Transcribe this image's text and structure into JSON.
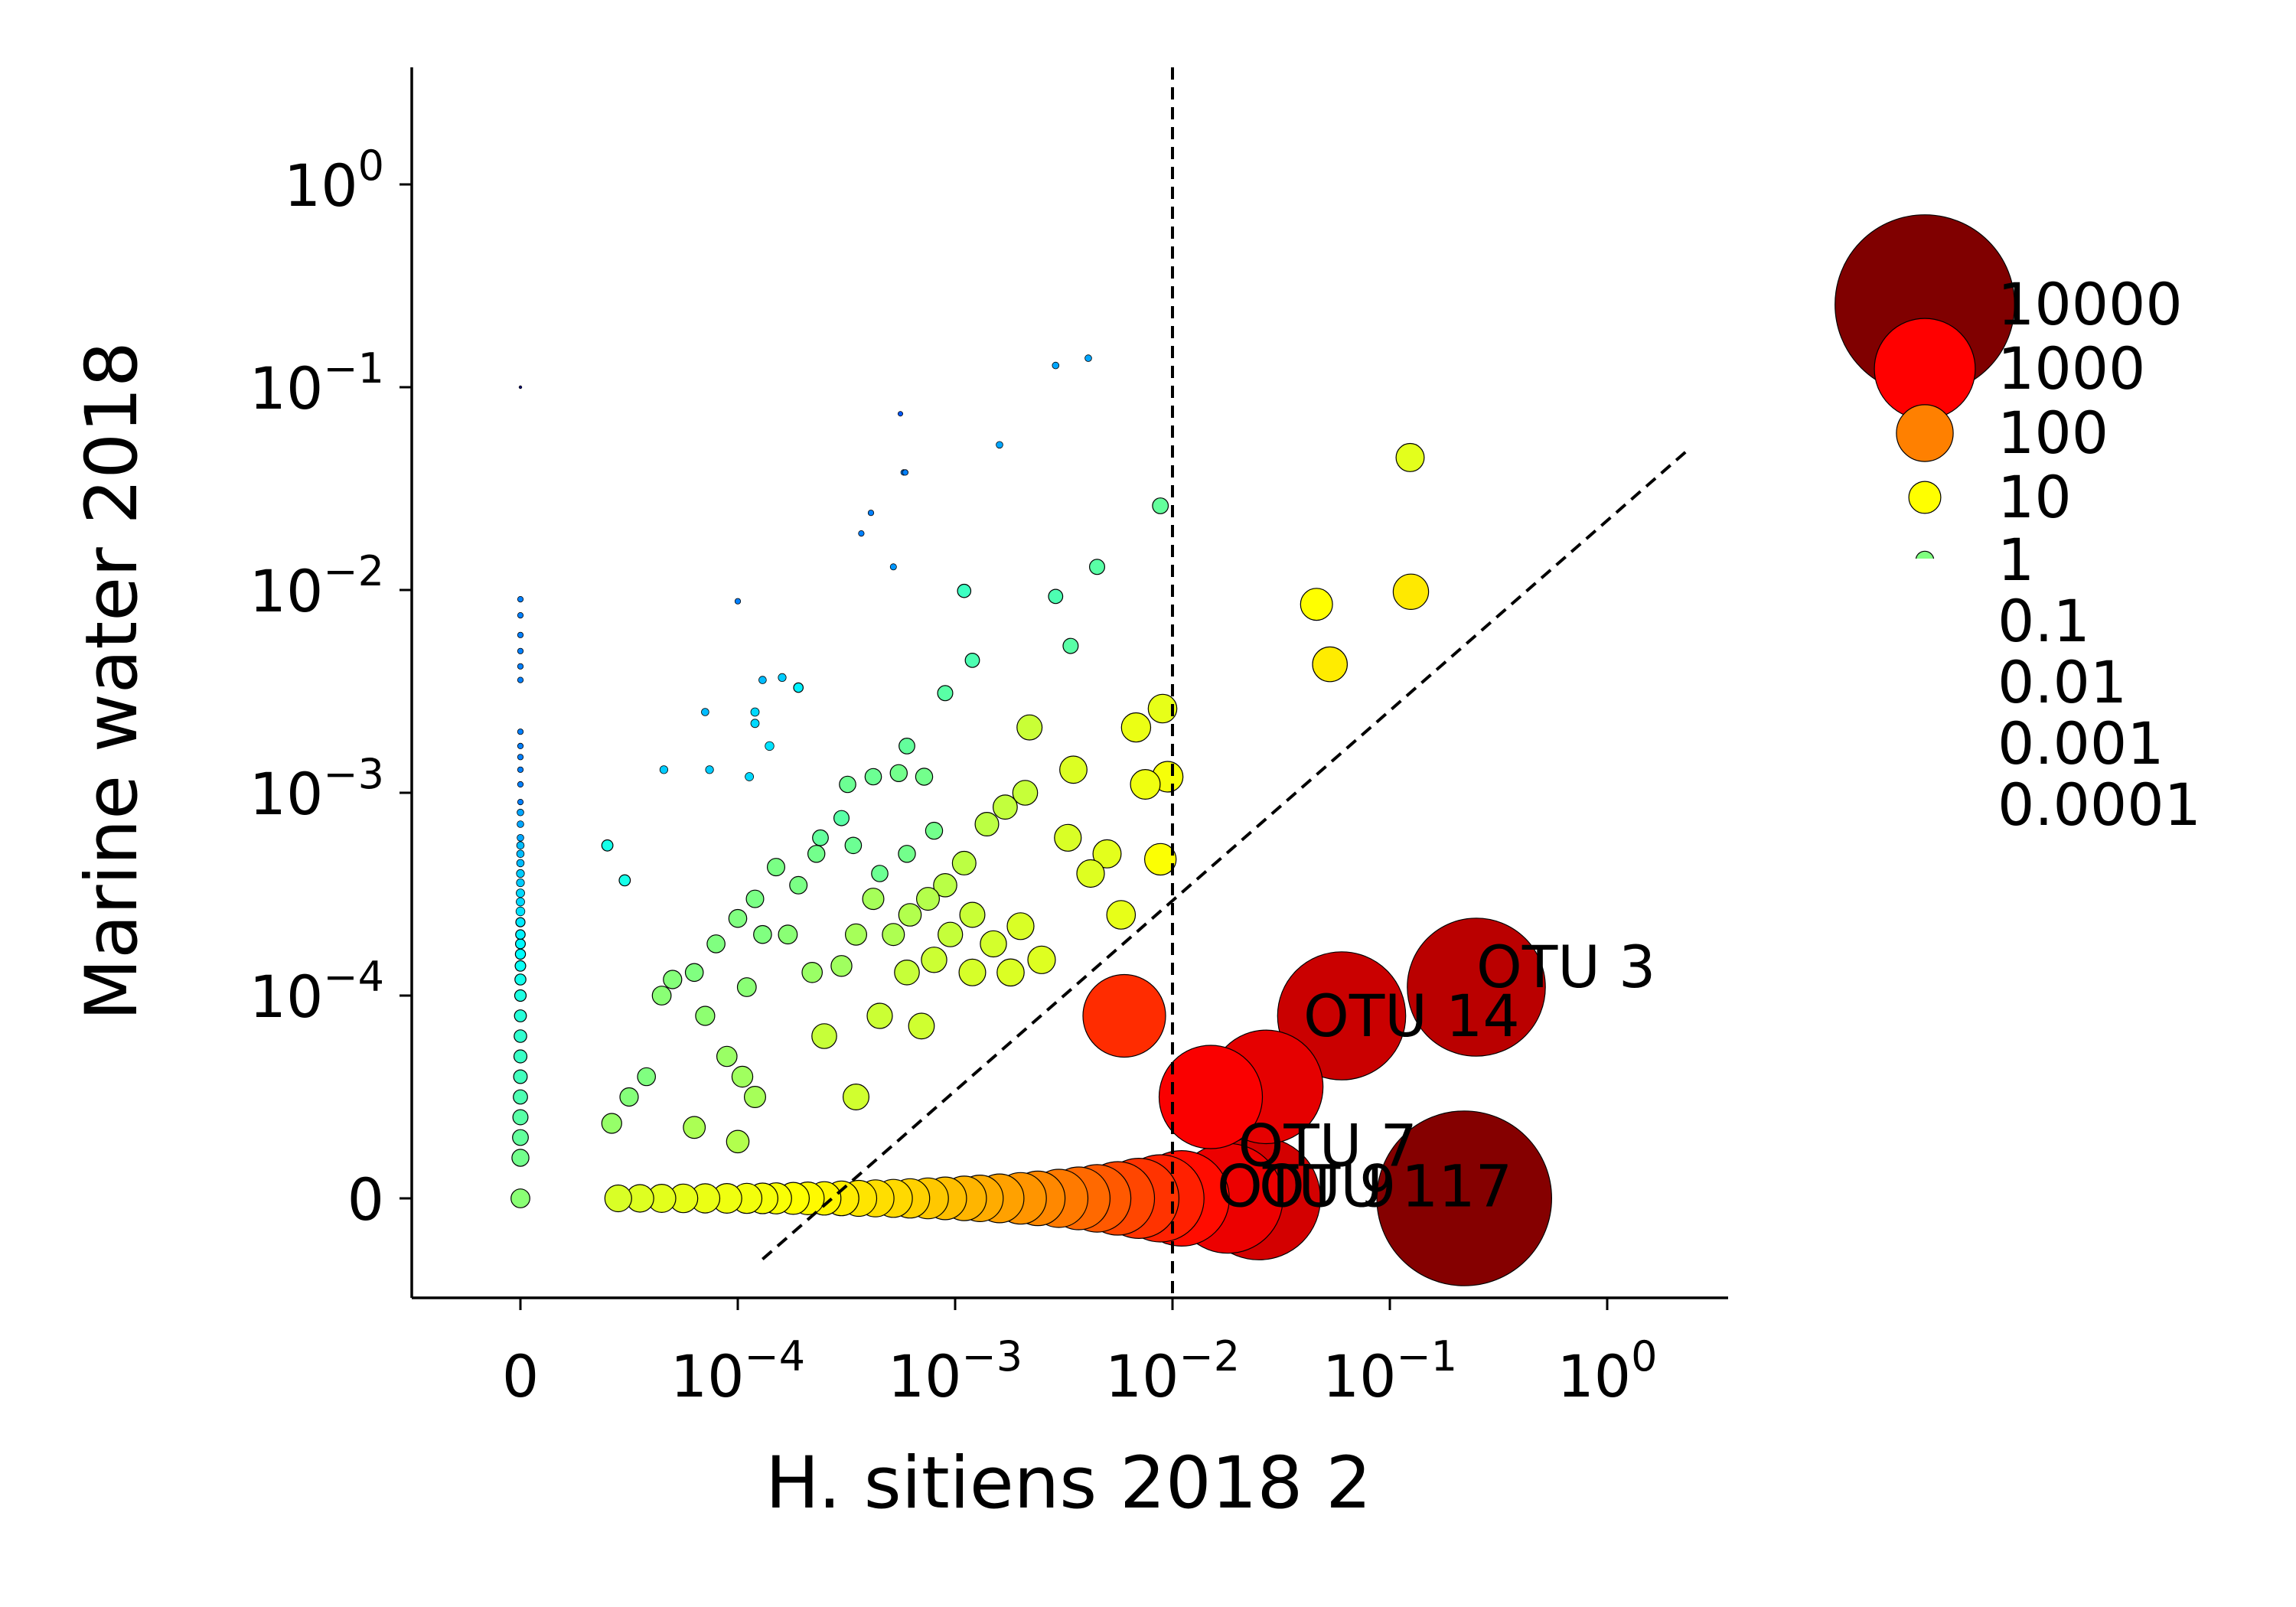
{
  "chart_data": {
    "type": "scatter",
    "title": "",
    "xlabel": "H. sitiens 2018 2",
    "ylabel": "Marine water 2018",
    "x_scale": "symlog",
    "y_scale": "symlog",
    "xlim": [
      -3e-05,
      2.5
    ],
    "ylim": [
      -3e-05,
      3.0
    ],
    "x_ticks": [
      {
        "value": 0,
        "base": "0",
        "exp": ""
      },
      {
        "value": 0.0001,
        "base": "10",
        "exp": "−4"
      },
      {
        "value": 0.001,
        "base": "10",
        "exp": "−3"
      },
      {
        "value": 0.01,
        "base": "10",
        "exp": "−2"
      },
      {
        "value": 0.1,
        "base": "10",
        "exp": "−1"
      },
      {
        "value": 1,
        "base": "10",
        "exp": "0"
      }
    ],
    "y_ticks": [
      {
        "value": 0,
        "base": "0",
        "exp": ""
      },
      {
        "value": 0.0001,
        "base": "10",
        "exp": "−4"
      },
      {
        "value": 0.001,
        "base": "10",
        "exp": "−3"
      },
      {
        "value": 0.01,
        "base": "10",
        "exp": "−2"
      },
      {
        "value": 0.1,
        "base": "10",
        "exp": "−1"
      },
      {
        "value": 1,
        "base": "10",
        "exp": "0"
      }
    ],
    "reference_lines": [
      {
        "kind": "vertical",
        "x": 0.01,
        "style": "dashed"
      },
      {
        "kind": "diagonal",
        "points": [
          [
            0.00013,
            -3e-05
          ],
          [
            2.4,
            0.05
          ]
        ],
        "style": "dashed"
      }
    ],
    "legend": {
      "placement": "right",
      "entries": [
        "10000",
        "1000",
        "100",
        "10",
        "1",
        "0.1",
        "0.01",
        "0.001",
        "0.0001"
      ]
    },
    "size_legend_values": [
      10000,
      1000,
      100,
      10,
      1,
      0.1,
      0.01,
      0.001,
      0.0001
    ],
    "color_map": "jet",
    "grid": false,
    "labels": [
      {
        "text": "OTU 3",
        "x": 0.25,
        "y": 0.00011
      },
      {
        "text": "OTU 14",
        "x": 0.04,
        "y": 8e-05
      },
      {
        "text": "OTU 7",
        "x": 0.02,
        "y": 1.6e-05
      },
      {
        "text": "OTU 9",
        "x": 0.016,
        "y": -4e-06
      },
      {
        "text": "OTU 117",
        "x": 0.025,
        "y": -4e-06
      }
    ],
    "points": [
      {
        "x": 0,
        "y": 0.1,
        "s": 0.0001
      },
      {
        "x": 0,
        "y": 0.009,
        "s": 0.01
      },
      {
        "x": 0,
        "y": 0.0075,
        "s": 0.01
      },
      {
        "x": 0,
        "y": 0.006,
        "s": 0.01
      },
      {
        "x": 0,
        "y": 0.005,
        "s": 0.01
      },
      {
        "x": 0,
        "y": 0.0042,
        "s": 0.01
      },
      {
        "x": 0,
        "y": 0.0036,
        "s": 0.01
      },
      {
        "x": 0,
        "y": 0.002,
        "s": 0.01
      },
      {
        "x": 0,
        "y": 0.0017,
        "s": 0.01
      },
      {
        "x": 0,
        "y": 0.0015,
        "s": 0.01
      },
      {
        "x": 0,
        "y": 0.0013,
        "s": 0.01
      },
      {
        "x": 0,
        "y": 0.0011,
        "s": 0.01
      },
      {
        "x": 0,
        "y": 0.0009,
        "s": 0.01
      },
      {
        "x": 0,
        "y": 0.0008,
        "s": 0.02
      },
      {
        "x": 0,
        "y": 0.0007,
        "s": 0.02
      },
      {
        "x": 0,
        "y": 0.0006,
        "s": 0.02
      },
      {
        "x": 0,
        "y": 0.00055,
        "s": 0.03
      },
      {
        "x": 0,
        "y": 0.0005,
        "s": 0.03
      },
      {
        "x": 0,
        "y": 0.00045,
        "s": 0.03
      },
      {
        "x": 0,
        "y": 0.0004,
        "s": 0.04
      },
      {
        "x": 0,
        "y": 0.00036,
        "s": 0.04
      },
      {
        "x": 0,
        "y": 0.00032,
        "s": 0.05
      },
      {
        "x": 0,
        "y": 0.00029,
        "s": 0.05
      },
      {
        "x": 0,
        "y": 0.00026,
        "s": 0.06
      },
      {
        "x": 0,
        "y": 0.00023,
        "s": 0.07
      },
      {
        "x": 0,
        "y": 0.0002,
        "s": 0.08
      },
      {
        "x": 0,
        "y": 0.00018,
        "s": 0.09
      },
      {
        "x": 0,
        "y": 0.00016,
        "s": 0.1
      },
      {
        "x": 0,
        "y": 0.00014,
        "s": 0.12
      },
      {
        "x": 0,
        "y": 0.00012,
        "s": 0.14
      },
      {
        "x": 0,
        "y": 0.0001,
        "s": 0.17
      },
      {
        "x": 0,
        "y": 9e-05,
        "s": 0.2
      },
      {
        "x": 0,
        "y": 8e-05,
        "s": 0.24
      },
      {
        "x": 0,
        "y": 7e-05,
        "s": 0.28
      },
      {
        "x": 0,
        "y": 6e-05,
        "s": 0.33
      },
      {
        "x": 0,
        "y": 5e-05,
        "s": 0.4
      },
      {
        "x": 0,
        "y": 4e-05,
        "s": 0.5
      },
      {
        "x": 0,
        "y": 3e-05,
        "s": 0.6
      },
      {
        "x": 0,
        "y": 2e-05,
        "s": 0.8
      },
      {
        "x": 0,
        "y": 0,
        "s": 1.2
      },
      {
        "x": 0.00058,
        "y": 0.038,
        "s": 0.01
      },
      {
        "x": 0.00037,
        "y": 0.019,
        "s": 0.01
      },
      {
        "x": 0.00056,
        "y": 0.074,
        "s": 0.005
      },
      {
        "x": 0.00059,
        "y": 0.038,
        "s": 0.01
      },
      {
        "x": 0.00041,
        "y": 0.024,
        "s": 0.01
      },
      {
        "x": 0.00052,
        "y": 0.013,
        "s": 0.015
      },
      {
        "x": 0.0029,
        "y": 0.128,
        "s": 0.02
      },
      {
        "x": 0.0041,
        "y": 0.139,
        "s": 0.02
      },
      {
        "x": 0.0016,
        "y": 0.052,
        "s": 0.02
      },
      {
        "x": 0.0001,
        "y": 0.0088,
        "s": 0.01
      },
      {
        "x": 0.00016,
        "y": 0.0037,
        "s": 0.04
      },
      {
        "x": 0.00013,
        "y": 0.0036,
        "s": 0.03
      },
      {
        "x": 8.5e-05,
        "y": 0.0025,
        "s": 0.03
      },
      {
        "x": 8.7e-05,
        "y": 0.0013,
        "s": 0.04
      },
      {
        "x": 6.6e-05,
        "y": 0.0013,
        "s": 0.04
      },
      {
        "x": 0.000113,
        "y": 0.0012,
        "s": 0.05
      },
      {
        "x": 0.00012,
        "y": 0.0025,
        "s": 0.05
      },
      {
        "x": 0.00012,
        "y": 0.0022,
        "s": 0.05
      },
      {
        "x": 0.00019,
        "y": 0.0033,
        "s": 0.08
      },
      {
        "x": 0.00014,
        "y": 0.0017,
        "s": 0.06
      },
      {
        "x": 4.8e-05,
        "y": 0.00037,
        "s": 0.15
      },
      {
        "x": 4e-05,
        "y": 0.00055,
        "s": 0.15
      },
      {
        "x": 0.0011,
        "y": 0.0099,
        "s": 0.3
      },
      {
        "x": 0.0029,
        "y": 0.0093,
        "s": 0.4
      },
      {
        "x": 0.0034,
        "y": 0.0053,
        "s": 0.5
      },
      {
        "x": 0.0012,
        "y": 0.0045,
        "s": 0.4
      },
      {
        "x": 0.0045,
        "y": 0.013,
        "s": 0.5
      },
      {
        "x": 0.0088,
        "y": 0.026,
        "s": 0.6
      },
      {
        "x": 0.0009,
        "y": 0.0031,
        "s": 0.5
      },
      {
        "x": 0.0006,
        "y": 0.0017,
        "s": 0.6
      },
      {
        "x": 0.0003,
        "y": 0.00075,
        "s": 0.5
      },
      {
        "x": 0.00024,
        "y": 0.0006,
        "s": 0.6
      },
      {
        "x": 0.00034,
        "y": 0.00055,
        "s": 0.7
      },
      {
        "x": 0.00045,
        "y": 0.0004,
        "s": 0.7
      },
      {
        "x": 0.0006,
        "y": 0.0005,
        "s": 0.8
      },
      {
        "x": 0.0008,
        "y": 0.00065,
        "s": 0.8
      },
      {
        "x": 0.00072,
        "y": 0.0012,
        "s": 0.8
      },
      {
        "x": 0.00055,
        "y": 0.00125,
        "s": 0.8
      },
      {
        "x": 0.00042,
        "y": 0.0012,
        "s": 0.7
      },
      {
        "x": 0.00032,
        "y": 0.0011,
        "s": 0.7
      },
      {
        "x": 0.00023,
        "y": 0.0005,
        "s": 0.8
      },
      {
        "x": 0.00019,
        "y": 0.00035,
        "s": 0.9
      },
      {
        "x": 0.00015,
        "y": 0.00043,
        "s": 0.9
      },
      {
        "x": 0.00012,
        "y": 0.0003,
        "s": 0.9
      },
      {
        "x": 0.0001,
        "y": 0.00024,
        "s": 1.0
      },
      {
        "x": 9e-05,
        "y": 0.00018,
        "s": 1.0
      },
      {
        "x": 0.00013,
        "y": 0.0002,
        "s": 1.0
      },
      {
        "x": 0.00017,
        "y": 0.0002,
        "s": 1.2
      },
      {
        "x": 8e-05,
        "y": 0.00013,
        "s": 1.0
      },
      {
        "x": 7e-05,
        "y": 0.00012,
        "s": 1.1
      },
      {
        "x": 0.00011,
        "y": 0.00011,
        "s": 1.2
      },
      {
        "x": 6.5e-05,
        "y": 0.0001,
        "s": 1.2
      },
      {
        "x": 8.5e-05,
        "y": 9e-05,
        "s": 1.3
      },
      {
        "x": 5.8e-05,
        "y": 6e-05,
        "s": 1.0
      },
      {
        "x": 5e-05,
        "y": 5e-05,
        "s": 1.1
      },
      {
        "x": 4.2e-05,
        "y": 3.7e-05,
        "s": 1.5
      },
      {
        "x": 9.5e-05,
        "y": 7e-05,
        "s": 1.6
      },
      {
        "x": 0.000105,
        "y": 6e-05,
        "s": 1.8
      },
      {
        "x": 0.00012,
        "y": 5e-05,
        "s": 2.0
      },
      {
        "x": 8e-05,
        "y": 3.5e-05,
        "s": 2.2
      },
      {
        "x": 0.0001,
        "y": 2.8e-05,
        "s": 2.5
      },
      {
        "x": 0.00022,
        "y": 0.00013,
        "s": 1.6
      },
      {
        "x": 0.0003,
        "y": 0.00014,
        "s": 1.8
      },
      {
        "x": 0.00035,
        "y": 0.0002,
        "s": 2.0
      },
      {
        "x": 0.00042,
        "y": 0.0003,
        "s": 2.0
      },
      {
        "x": 0.00052,
        "y": 0.0002,
        "s": 2.3
      },
      {
        "x": 0.00062,
        "y": 0.00025,
        "s": 2.5
      },
      {
        "x": 0.00075,
        "y": 0.0003,
        "s": 2.6
      },
      {
        "x": 0.0009,
        "y": 0.00035,
        "s": 2.8
      },
      {
        "x": 0.0011,
        "y": 0.00045,
        "s": 3.0
      },
      {
        "x": 0.0014,
        "y": 0.0007,
        "s": 3.0
      },
      {
        "x": 0.0017,
        "y": 0.00085,
        "s": 3.3
      },
      {
        "x": 0.0021,
        "y": 0.001,
        "s": 3.6
      },
      {
        "x": 0.0022,
        "y": 0.0021,
        "s": 3.8
      },
      {
        "x": 0.00095,
        "y": 0.0002,
        "s": 3.5
      },
      {
        "x": 0.0012,
        "y": 0.00025,
        "s": 3.8
      },
      {
        "x": 0.0006,
        "y": 0.00013,
        "s": 3.6
      },
      {
        "x": 0.00045,
        "y": 9e-05,
        "s": 3.9
      },
      {
        "x": 0.0007,
        "y": 8.5e-05,
        "s": 4.2
      },
      {
        "x": 0.00035,
        "y": 5e-05,
        "s": 4.3
      },
      {
        "x": 0.00025,
        "y": 8e-05,
        "s": 3.6
      },
      {
        "x": 0.0008,
        "y": 0.00015,
        "s": 4.0
      },
      {
        "x": 0.0015,
        "y": 0.00018,
        "s": 4.5
      },
      {
        "x": 0.002,
        "y": 0.00022,
        "s": 5.0
      },
      {
        "x": 0.0025,
        "y": 0.00015,
        "s": 5.5
      },
      {
        "x": 0.0018,
        "y": 0.00013,
        "s": 5.2
      },
      {
        "x": 0.0012,
        "y": 0.00013,
        "s": 4.8
      },
      {
        "x": 0.0033,
        "y": 0.0006,
        "s": 5.0
      },
      {
        "x": 0.0035,
        "y": 0.0013,
        "s": 5.3
      },
      {
        "x": 0.005,
        "y": 0.0005,
        "s": 6.0
      },
      {
        "x": 0.0058,
        "y": 0.00025,
        "s": 6.5
      },
      {
        "x": 0.0042,
        "y": 0.0004,
        "s": 5.5
      },
      {
        "x": 0.0068,
        "y": 0.0021,
        "s": 7.0
      },
      {
        "x": 0.009,
        "y": 0.0026,
        "s": 6.5
      },
      {
        "x": 0.0075,
        "y": 0.0011,
        "s": 7.5
      },
      {
        "x": 0.0095,
        "y": 0.0012,
        "s": 8.5
      },
      {
        "x": 0.0088,
        "y": 0.00047,
        "s": 9.5
      },
      {
        "x": 0.046,
        "y": 0.0085,
        "s": 10
      },
      {
        "x": 0.053,
        "y": 0.0043,
        "s": 14
      },
      {
        "x": 0.125,
        "y": 0.0098,
        "s": 15
      },
      {
        "x": 0.124,
        "y": 0.045,
        "s": 6
      },
      {
        "x": 4.5e-05,
        "y": 0,
        "s": 5
      },
      {
        "x": 5.5e-05,
        "y": 0,
        "s": 5.5
      },
      {
        "x": 6.5e-05,
        "y": 0,
        "s": 6
      },
      {
        "x": 7.5e-05,
        "y": 0,
        "s": 6.5
      },
      {
        "x": 8.5e-05,
        "y": 0,
        "s": 7
      },
      {
        "x": 9.5e-05,
        "y": 0,
        "s": 7.5
      },
      {
        "x": 0.00011,
        "y": 0,
        "s": 8
      },
      {
        "x": 0.00013,
        "y": 0,
        "s": 8.5
      },
      {
        "x": 0.00015,
        "y": 0,
        "s": 9
      },
      {
        "x": 0.00018,
        "y": 0,
        "s": 10
      },
      {
        "x": 0.00021,
        "y": 0,
        "s": 11
      },
      {
        "x": 0.00025,
        "y": 0,
        "s": 12
      },
      {
        "x": 0.0003,
        "y": 0,
        "s": 14
      },
      {
        "x": 0.00036,
        "y": 0,
        "s": 16
      },
      {
        "x": 0.00043,
        "y": 0,
        "s": 18
      },
      {
        "x": 0.00052,
        "y": 0,
        "s": 20
      },
      {
        "x": 0.00062,
        "y": 0,
        "s": 23
      },
      {
        "x": 0.00075,
        "y": 0,
        "s": 27
      },
      {
        "x": 0.0009,
        "y": 0,
        "s": 32
      },
      {
        "x": 0.0011,
        "y": 0,
        "s": 38
      },
      {
        "x": 0.0013,
        "y": 0,
        "s": 45
      },
      {
        "x": 0.0016,
        "y": 0,
        "s": 55
      },
      {
        "x": 0.002,
        "y": 0,
        "s": 68
      },
      {
        "x": 0.0024,
        "y": 0,
        "s": 85
      },
      {
        "x": 0.003,
        "y": 0,
        "s": 110
      },
      {
        "x": 0.0037,
        "y": 0,
        "s": 150
      },
      {
        "x": 0.0045,
        "y": 0,
        "s": 200
      },
      {
        "x": 0.0056,
        "y": 0,
        "s": 280
      },
      {
        "x": 0.007,
        "y": 0,
        "s": 400
      },
      {
        "x": 0.0088,
        "y": 0,
        "s": 560
      },
      {
        "x": 0.011,
        "y": 0,
        "s": 800
      },
      {
        "x": 0.018,
        "y": 0,
        "s": 1400
      },
      {
        "x": 0.025,
        "y": 0,
        "s": 2200
      },
      {
        "x": 0.006,
        "y": 9e-05,
        "s": 450
      },
      {
        "x": 0.015,
        "y": 5e-05,
        "s": 1100
      },
      {
        "x": 0.027,
        "y": 5.5e-05,
        "s": 1600
      },
      {
        "x": 0.25,
        "y": 0.00011,
        "s": 3500
      },
      {
        "x": 0.06,
        "y": 9e-05,
        "s": 2600
      },
      {
        "x": 0.22,
        "y": 0,
        "s": 9000
      }
    ]
  }
}
